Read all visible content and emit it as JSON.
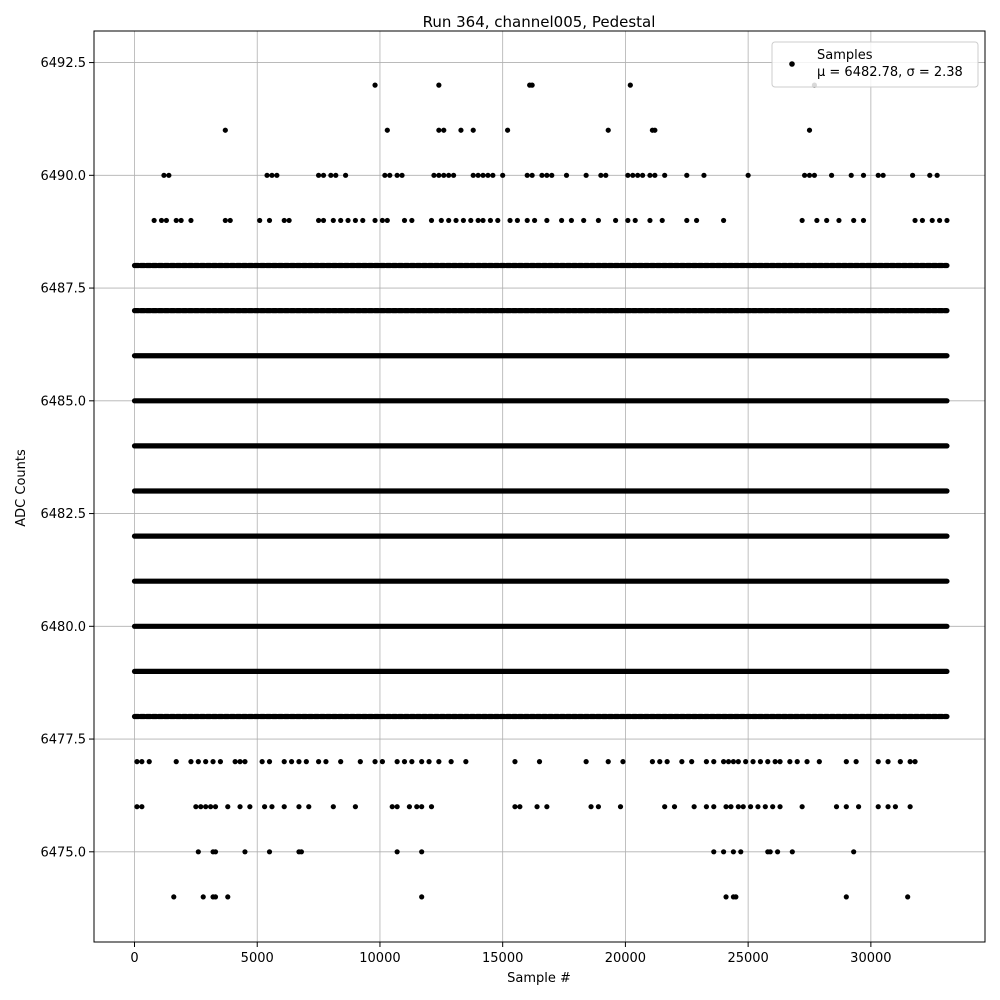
{
  "chart_data": {
    "type": "scatter",
    "title": "Run 364, channel005, Pedestal",
    "xlabel": "Sample #",
    "ylabel": "ADC Counts",
    "xlim": [
      -1650,
      34650
    ],
    "ylim": [
      6473.0,
      6493.2
    ],
    "x_ticks": [
      0,
      5000,
      10000,
      15000,
      20000,
      25000,
      30000
    ],
    "y_ticks": [
      6475.0,
      6477.5,
      6480.0,
      6482.5,
      6485.0,
      6487.5,
      6490.0,
      6492.5
    ],
    "x_tick_labels": [
      "0",
      "5000",
      "10000",
      "15000",
      "20000",
      "25000",
      "30000"
    ],
    "y_tick_labels": [
      "6475.0",
      "6477.5",
      "6480.0",
      "6482.5",
      "6485.0",
      "6487.5",
      "6490.0",
      "6492.5"
    ],
    "grid": true,
    "legend": {
      "placement": "top-right",
      "entries": [
        {
          "label": "Samples",
          "detail": "μ = 6482.78, σ = 2.38"
        }
      ]
    },
    "series": [
      {
        "name": "Samples",
        "color": "#000000",
        "x_range": [
          0,
          33100
        ],
        "dense_levels": [
          6478,
          6479,
          6480,
          6481,
          6482,
          6483,
          6484,
          6485,
          6486,
          6487,
          6488
        ],
        "sparse_points": [
          {
            "y": 6492,
            "x": [
              9800,
              12400,
              16100,
              16200,
              20200,
              27700
            ]
          },
          {
            "y": 6491,
            "x": [
              3700,
              10300,
              12400,
              12600,
              13300,
              13800,
              15200,
              19300,
              21100,
              21200,
              27500
            ]
          },
          {
            "y": 6490,
            "x": [
              1200,
              1400,
              5400,
              5600,
              5800,
              7500,
              7700,
              8000,
              8200,
              8600,
              10200,
              10400,
              10700,
              10900,
              12200,
              12400,
              12600,
              12800,
              13000,
              13800,
              14000,
              14200,
              14400,
              14600,
              15000,
              16000,
              16200,
              16600,
              16800,
              17000,
              17600,
              18400,
              19000,
              19200,
              20100,
              20300,
              20500,
              20700,
              21000,
              21200,
              21600,
              22500,
              23200,
              25000,
              27300,
              27500,
              27700,
              28400,
              29200,
              29700,
              30300,
              30500,
              31700,
              32400,
              32700
            ]
          },
          {
            "y": 6489,
            "x": [
              800,
              1100,
              1300,
              1700,
              1900,
              2300,
              3700,
              3900,
              5100,
              5500,
              6100,
              6300,
              7500,
              7700,
              8100,
              8400,
              8700,
              9000,
              9300,
              9800,
              10100,
              10300,
              11000,
              11300,
              12100,
              12500,
              12800,
              13100,
              13400,
              13700,
              14000,
              14200,
              14500,
              14800,
              15300,
              15600,
              16000,
              16300,
              16800,
              17400,
              17800,
              18300,
              18900,
              19600,
              20100,
              20400,
              21000,
              21500,
              22500,
              22900,
              24000,
              27200,
              27800,
              28200,
              28700,
              29300,
              29700,
              31800,
              32100,
              32500,
              32800,
              33100
            ]
          },
          {
            "y": 6477,
            "x": [
              100,
              300,
              600,
              1700,
              2300,
              2600,
              2900,
              3200,
              3500,
              4100,
              4300,
              4500,
              5200,
              5500,
              6100,
              6400,
              6700,
              7000,
              7500,
              7800,
              8400,
              9200,
              9800,
              10100,
              10700,
              11000,
              11300,
              11700,
              12000,
              12400,
              12900,
              13500,
              15500,
              16500,
              18400,
              19300,
              19900,
              21100,
              21400,
              21700,
              22300,
              22700,
              23300,
              23600,
              24000,
              24200,
              24400,
              24600,
              24900,
              25200,
              25500,
              25800,
              26100,
              26300,
              26700,
              27000,
              27400,
              27900,
              29000,
              29400,
              30300,
              30700,
              31200,
              31600,
              31800
            ]
          },
          {
            "y": 6476,
            "x": [
              100,
              300,
              2500,
              2700,
              2900,
              3100,
              3300,
              3800,
              4300,
              4700,
              5300,
              5600,
              6100,
              6700,
              7100,
              8100,
              9000,
              10500,
              10700,
              11200,
              11500,
              11700,
              12100,
              15500,
              15700,
              16400,
              16800,
              18600,
              18900,
              19800,
              21600,
              22000,
              22800,
              23300,
              23600,
              24100,
              24300,
              24600,
              24800,
              25100,
              25400,
              25700,
              26000,
              26300,
              27200,
              28600,
              29000,
              29500,
              30300,
              30700,
              31000,
              31600
            ]
          },
          {
            "y": 6475,
            "x": [
              2600,
              3200,
              3300,
              4500,
              5500,
              6700,
              6800,
              10700,
              11700,
              23600,
              24000,
              24400,
              24700,
              25800,
              25900,
              26200,
              26800,
              29300
            ]
          },
          {
            "y": 6474,
            "x": [
              1600,
              2800,
              3200,
              3300,
              3800,
              11700,
              24100,
              24400,
              24500,
              29000,
              31500
            ]
          }
        ]
      }
    ]
  }
}
